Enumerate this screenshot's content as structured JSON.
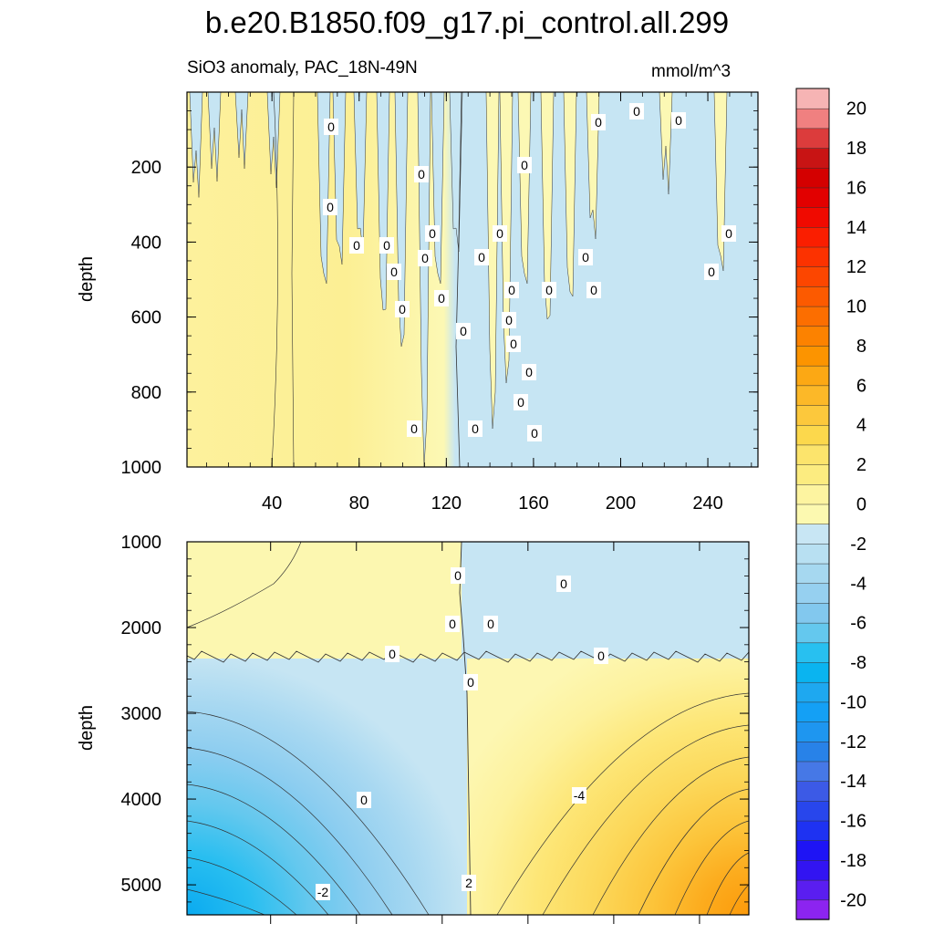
{
  "title": "b.e20.B1850.f09_g17.pi_control.all.299",
  "subtitle": "SiO3 anomaly, PAC_18N-49N",
  "units": "mmol/m^3",
  "chart_data": {
    "type": "heatmap",
    "panels": [
      {
        "name": "upper",
        "ylabel": "depth",
        "xlim": [
          1,
          263
        ],
        "ylim": [
          1000,
          0
        ],
        "x_ticks": [
          40,
          80,
          120,
          160,
          200,
          240
        ],
        "x_tick_labels": [
          "40",
          "80",
          "120",
          "160",
          "200",
          "240"
        ],
        "y_ticks": [
          200,
          400,
          600,
          800,
          1000
        ],
        "y_tick_labels": [
          "200",
          "400",
          "600",
          "800",
          "1000"
        ],
        "regions": [
          {
            "x": [
              1,
              128
            ],
            "value": 0.5
          },
          {
            "x": [
              128,
              263
            ],
            "value": -0.5
          }
        ],
        "contour_labels": [
          "0",
          "0",
          "0",
          "0",
          "0",
          "0",
          "0",
          "0",
          "0",
          "0",
          "0",
          "0",
          "0",
          "0",
          "0",
          "0",
          "0",
          "0",
          "0",
          "0",
          "0",
          "0",
          "0",
          "0",
          "0",
          "0",
          "0",
          "0",
          "0",
          "0"
        ]
      },
      {
        "name": "lower",
        "ylabel": "depth",
        "xlim": [
          1,
          263
        ],
        "ylim": [
          5350,
          1000
        ],
        "y_ticks": [
          1000,
          2000,
          3000,
          4000,
          5000
        ],
        "y_tick_labels": [
          "1000",
          "2000",
          "3000",
          "4000",
          "5000"
        ],
        "regions": [
          {
            "x": [
              1,
              131
            ],
            "y": [
              1000,
              2400
            ],
            "value": 0.5
          },
          {
            "x": [
              131,
              263
            ],
            "y": [
              1000,
              2400
            ],
            "value": -0.5
          },
          {
            "x": [
              1,
              131
            ],
            "y": [
              2400,
              5350
            ],
            "value": -2.0,
            "min": -7
          },
          {
            "x": [
              131,
              263
            ],
            "y": [
              2400,
              5350
            ],
            "value": 2.0,
            "max": 9
          }
        ],
        "contour_labels": [
          "0",
          "0",
          "0",
          "0",
          "0",
          "0",
          "0",
          "-2",
          "-4",
          "2",
          "0"
        ]
      }
    ],
    "colorbar": {
      "levels": [
        -20,
        -19,
        -18,
        -17,
        -16,
        -15,
        -14,
        -13,
        -12,
        -11,
        -10,
        -9,
        -8,
        -7,
        -6,
        -5,
        -4,
        -3,
        -2,
        -1,
        0,
        1,
        2,
        3,
        4,
        5,
        6,
        7,
        8,
        9,
        10,
        11,
        12,
        13,
        14,
        15,
        16,
        17,
        18,
        19,
        20
      ],
      "tick_labels": [
        "20",
        "18",
        "16",
        "14",
        "12",
        "10",
        "8",
        "6",
        "4",
        "2",
        "0",
        "-2",
        "-4",
        "-6",
        "-8",
        "-10",
        "-12",
        "-14",
        "-16",
        "-18",
        "-20"
      ],
      "colors": [
        "#8c24f0",
        "#5a1ef0",
        "#3214f2",
        "#1e14f5",
        "#1e32f2",
        "#2846ec",
        "#3c5ae6",
        "#4678e6",
        "#2882e8",
        "#1e96f0",
        "#14a0f5",
        "#1ea8f0",
        "#0ab4f0",
        "#28c0f0",
        "#64c8ee",
        "#82c8ee",
        "#96d0f0",
        "#a6d8f0",
        "#b8e0f2",
        "#c8e6f4",
        "#fcf9b0",
        "#fdf4a0",
        "#fcec80",
        "#fce46c",
        "#fcd84c",
        "#fcc83c",
        "#fcb828",
        "#fca814",
        "#fc9400",
        "#fc8200",
        "#fc6e00",
        "#fc5a00",
        "#fc4600",
        "#fc3200",
        "#fa1e00",
        "#f00a00",
        "#e20000",
        "#d40000",
        "#c81414",
        "#dc3c3c",
        "#f08080",
        "#f6b4b4"
      ]
    }
  }
}
